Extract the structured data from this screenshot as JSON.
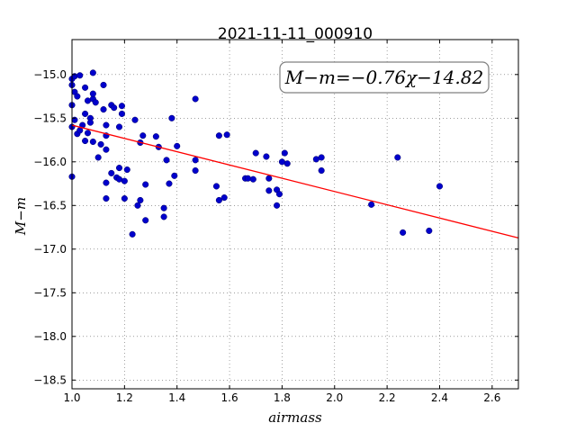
{
  "chart_data": {
    "type": "scatter",
    "title": "2021-11-11_000910",
    "xlabel": "airmass",
    "ylabel": "M−m",
    "xlim": [
      1.0,
      2.7
    ],
    "ylim": [
      -18.6,
      -14.6
    ],
    "y_inverted": false,
    "grid": true,
    "x_ticks": [
      "1.0",
      "1.2",
      "1.4",
      "1.6",
      "1.8",
      "2.0",
      "2.2",
      "2.4",
      "2.6"
    ],
    "y_ticks": [
      "−15.0",
      "−15.5",
      "−16.0",
      "−16.5",
      "−17.0",
      "−17.5",
      "−18.0",
      "−18.5"
    ],
    "annotation": "M−m=−0.76χ−14.82",
    "point_color": "#0000cc",
    "fit_color": "#ff0000",
    "fit": {
      "slope": -0.76,
      "intercept": -14.82
    },
    "points": [
      [
        1.0,
        -15.35
      ],
      [
        1.0,
        -15.05
      ],
      [
        1.0,
        -15.12
      ],
      [
        1.01,
        -15.02
      ],
      [
        1.01,
        -15.2
      ],
      [
        1.02,
        -15.25
      ],
      [
        1.0,
        -15.6
      ],
      [
        1.01,
        -15.52
      ],
      [
        1.02,
        -15.68
      ],
      [
        1.0,
        -16.17
      ],
      [
        1.03,
        -15.64
      ],
      [
        1.03,
        -15.01
      ],
      [
        1.04,
        -15.58
      ],
      [
        1.05,
        -15.15
      ],
      [
        1.05,
        -15.45
      ],
      [
        1.05,
        -15.76
      ],
      [
        1.06,
        -15.67
      ],
      [
        1.06,
        -15.3
      ],
      [
        1.07,
        -15.5
      ],
      [
        1.07,
        -15.55
      ],
      [
        1.08,
        -15.28
      ],
      [
        1.08,
        -14.98
      ],
      [
        1.08,
        -15.22
      ],
      [
        1.09,
        -15.32
      ],
      [
        1.08,
        -15.77
      ],
      [
        1.1,
        -15.95
      ],
      [
        1.11,
        -15.8
      ],
      [
        1.12,
        -15.12
      ],
      [
        1.12,
        -15.4
      ],
      [
        1.13,
        -15.58
      ],
      [
        1.13,
        -15.7
      ],
      [
        1.13,
        -15.86
      ],
      [
        1.13,
        -16.42
      ],
      [
        1.13,
        -16.24
      ],
      [
        1.15,
        -15.35
      ],
      [
        1.15,
        -16.13
      ],
      [
        1.16,
        -15.38
      ],
      [
        1.17,
        -16.18
      ],
      [
        1.18,
        -16.07
      ],
      [
        1.18,
        -16.2
      ],
      [
        1.18,
        -15.6
      ],
      [
        1.19,
        -15.45
      ],
      [
        1.19,
        -15.36
      ],
      [
        1.2,
        -16.22
      ],
      [
        1.2,
        -16.42
      ],
      [
        1.21,
        -16.09
      ],
      [
        1.23,
        -16.83
      ],
      [
        1.24,
        -15.52
      ],
      [
        1.25,
        -16.5
      ],
      [
        1.26,
        -16.44
      ],
      [
        1.26,
        -15.78
      ],
      [
        1.27,
        -15.7
      ],
      [
        1.28,
        -16.26
      ],
      [
        1.28,
        -16.67
      ],
      [
        1.32,
        -15.71
      ],
      [
        1.33,
        -15.83
      ],
      [
        1.35,
        -16.53
      ],
      [
        1.35,
        -16.63
      ],
      [
        1.36,
        -15.98
      ],
      [
        1.37,
        -16.25
      ],
      [
        1.38,
        -15.5
      ],
      [
        1.39,
        -16.16
      ],
      [
        1.4,
        -15.82
      ],
      [
        1.47,
        -15.28
      ],
      [
        1.47,
        -16.1
      ],
      [
        1.47,
        -15.98
      ],
      [
        1.55,
        -16.28
      ],
      [
        1.56,
        -16.44
      ],
      [
        1.56,
        -15.7
      ],
      [
        1.58,
        -16.41
      ],
      [
        1.59,
        -15.69
      ],
      [
        1.66,
        -16.19
      ],
      [
        1.67,
        -16.19
      ],
      [
        1.69,
        -16.2
      ],
      [
        1.7,
        -15.9
      ],
      [
        1.74,
        -15.94
      ],
      [
        1.75,
        -16.33
      ],
      [
        1.75,
        -16.19
      ],
      [
        1.78,
        -16.5
      ],
      [
        1.78,
        -16.32
      ],
      [
        1.79,
        -16.37
      ],
      [
        1.8,
        -16.0
      ],
      [
        1.81,
        -15.9
      ],
      [
        1.82,
        -16.02
      ],
      [
        1.93,
        -15.97
      ],
      [
        1.95,
        -15.95
      ],
      [
        1.95,
        -16.1
      ],
      [
        2.14,
        -16.49
      ],
      [
        2.24,
        -15.95
      ],
      [
        2.26,
        -16.81
      ],
      [
        2.36,
        -16.79
      ],
      [
        2.4,
        -16.28
      ]
    ]
  }
}
